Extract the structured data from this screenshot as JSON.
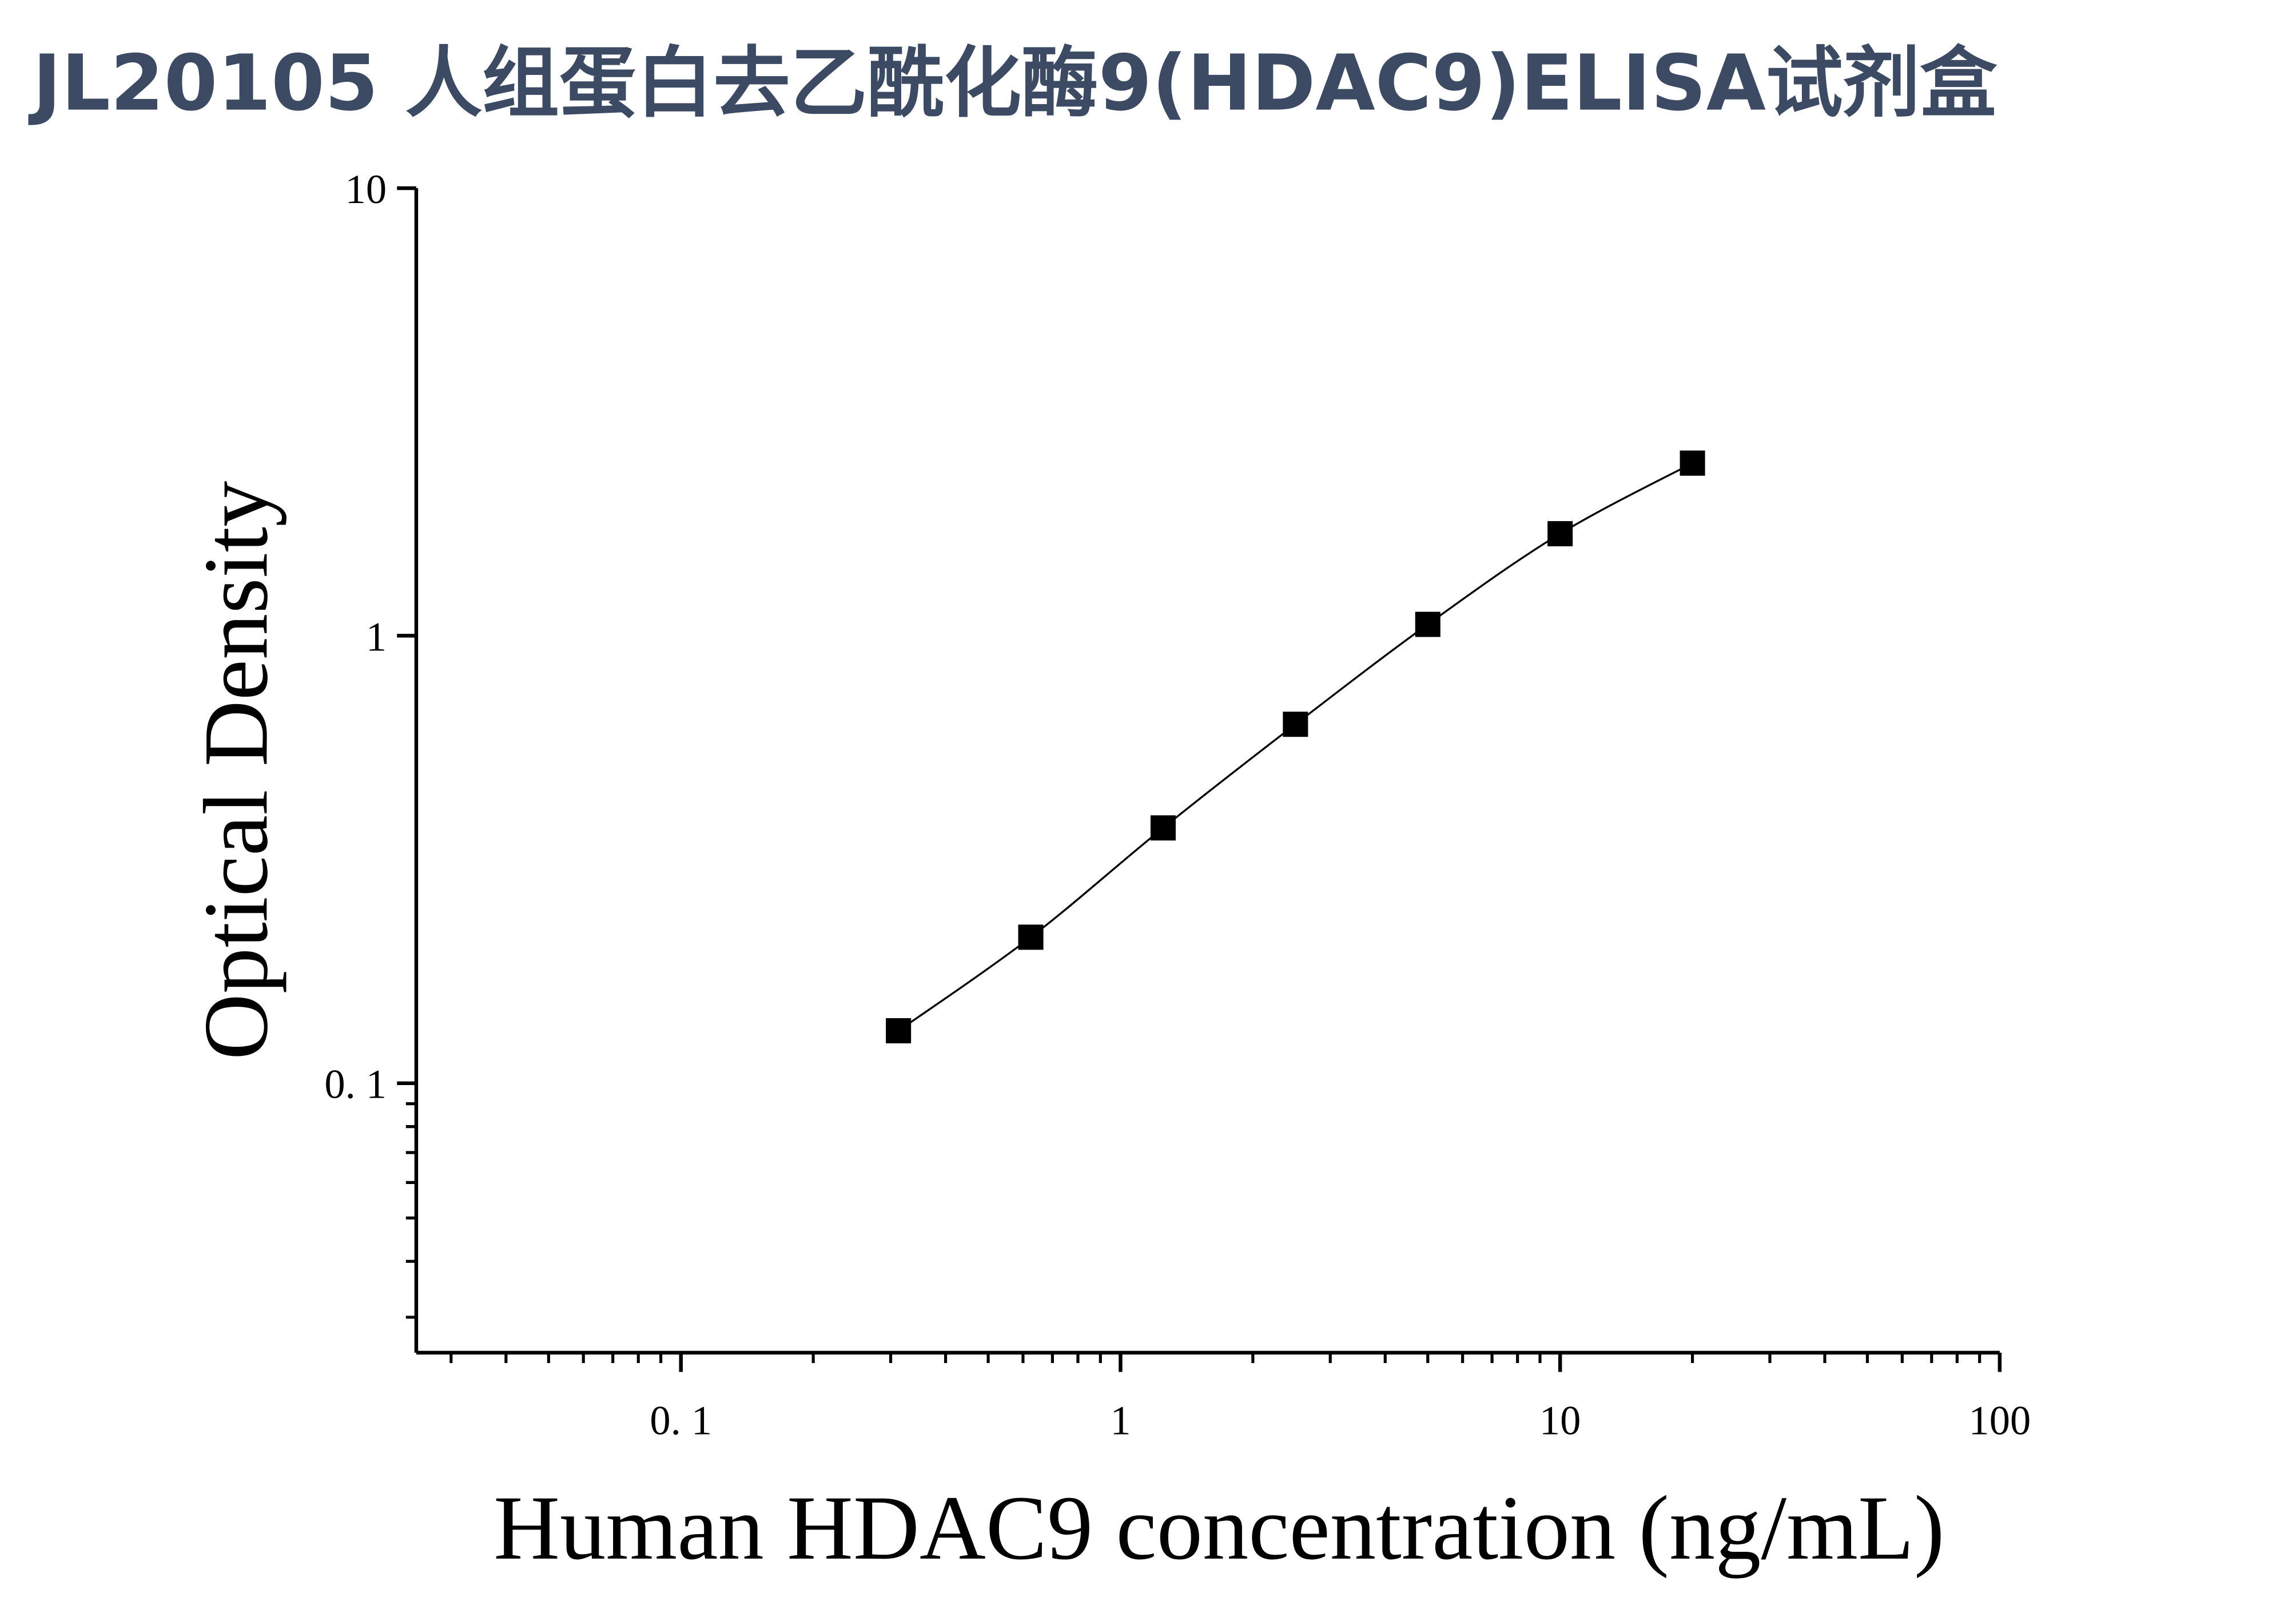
{
  "chart_data": {
    "type": "line",
    "title": "JL20105 人组蛋白去乙酰化酶9(HDAC9)ELISA试剂盒",
    "x_label": "Human HDAC9 concentration (ng/mL)",
    "y_label": "Optical Density",
    "x_scale": "log",
    "y_scale": "log",
    "xlim": [
      0.025,
      100
    ],
    "ylim": [
      0.025,
      10
    ],
    "xticks": [
      {
        "value": 0.1,
        "label": "0. 1"
      },
      1,
      10,
      100
    ],
    "yticks": [
      {
        "value": 0.1,
        "label": "0. 1"
      },
      1,
      10
    ],
    "x": [
      0.3125,
      0.625,
      1.25,
      2.5,
      5,
      10,
      20
    ],
    "series": [
      {
        "color": "#000000",
        "values": [
          0.131,
          0.212,
          0.372,
          0.634,
          1.06,
          1.69,
          2.43
        ]
      }
    ]
  }
}
